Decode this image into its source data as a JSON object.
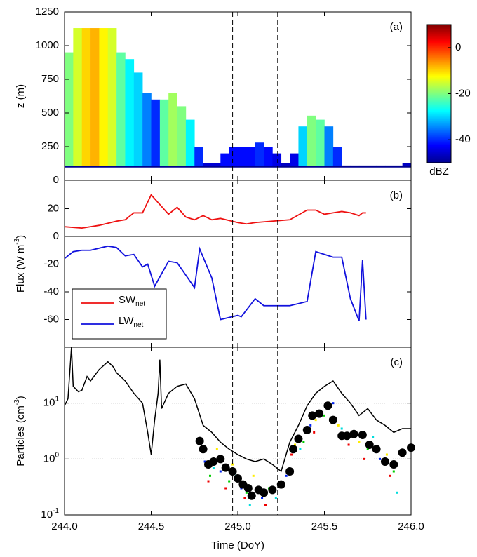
{
  "chart_data": [
    {
      "type": "heatmap",
      "panel_label": "(a)",
      "ylabel": "z (m)",
      "xlim": [
        244,
        246
      ],
      "xticks": [
        244,
        244.5,
        245,
        245.5,
        246
      ],
      "ylim": [
        0,
        1250
      ],
      "yticks": [
        0,
        250,
        500,
        750,
        1000,
        1250
      ],
      "vlines": [
        244.97,
        245.23
      ],
      "colormap": "jet",
      "base": 100,
      "x": [
        244,
        244.05,
        244.1,
        244.15,
        244.2,
        244.25,
        244.3,
        244.35,
        244.4,
        244.45,
        244.5,
        244.55,
        244.6,
        244.65,
        244.7,
        244.75,
        244.8,
        244.85,
        244.9,
        244.95,
        245,
        245.05,
        245.1,
        245.15,
        245.2,
        245.25,
        245.3,
        245.35,
        245.4,
        245.45,
        245.5,
        245.55,
        245.6,
        245.65,
        245.7,
        245.75,
        245.8,
        245.85,
        245.9,
        245.95
      ],
      "top": [
        950,
        1130,
        1130,
        1130,
        1130,
        1130,
        950,
        900,
        800,
        650,
        600,
        600,
        650,
        550,
        450,
        250,
        130,
        130,
        200,
        250,
        250,
        250,
        280,
        250,
        200,
        130,
        200,
        400,
        480,
        450,
        400,
        250,
        110,
        110,
        110,
        110,
        110,
        110,
        110,
        130
      ],
      "dbz": [
        -20,
        -15,
        -10,
        -8,
        -12,
        -15,
        -22,
        -28,
        -30,
        -35,
        -40,
        -22,
        -18,
        -20,
        -28,
        -40,
        -45,
        -45,
        -42,
        -42,
        -42,
        -42,
        -40,
        -42,
        -44,
        -46,
        -44,
        -30,
        -20,
        -22,
        -35,
        -40,
        -48,
        -48,
        -48,
        -48,
        -48,
        -48,
        -48,
        -46
      ],
      "clim": [
        -50,
        10
      ],
      "cticks": [
        -40,
        -20,
        0
      ],
      "clabel": "dBZ"
    },
    {
      "type": "line",
      "panel_label": "(b)",
      "legend": "lower left",
      "ylabel": {
        "text": "Flux (W m",
        "sup": "-3",
        "tail": ")"
      },
      "xlim": [
        244,
        246
      ],
      "xticks": [
        244,
        244.5,
        245,
        245.5,
        246
      ],
      "ylim": [
        -80,
        40.5
      ],
      "yticks": [
        -60,
        -40,
        -20,
        0,
        20
      ],
      "zero_line": 0,
      "series": [
        {
          "name": "SW",
          "sub": "net",
          "color": "#ee1111",
          "x": [
            244,
            244.1,
            244.2,
            244.3,
            244.35,
            244.4,
            244.45,
            244.5,
            244.55,
            244.6,
            244.65,
            244.7,
            244.75,
            244.8,
            244.85,
            244.9,
            245,
            245.05,
            245.1,
            245.2,
            245.3,
            245.4,
            245.45,
            245.5,
            245.55,
            245.6,
            245.65,
            245.7,
            245.72,
            245.74
          ],
          "values": [
            7,
            6,
            8,
            11,
            12,
            17,
            17,
            30,
            23,
            16,
            21,
            14,
            12,
            15,
            12,
            13,
            10,
            9,
            10,
            11,
            12,
            19,
            19,
            16,
            17,
            18,
            17,
            15,
            17,
            17
          ]
        },
        {
          "name": "LW",
          "sub": "net",
          "color": "#1111dd",
          "x": [
            244,
            244.05,
            244.1,
            244.15,
            244.25,
            244.3,
            244.35,
            244.4,
            244.45,
            244.48,
            244.52,
            244.6,
            244.65,
            244.7,
            244.75,
            244.78,
            244.85,
            244.9,
            245,
            245.02,
            245.1,
            245.15,
            245.2,
            245.3,
            245.4,
            245.45,
            245.55,
            245.6,
            245.65,
            245.7,
            245.72,
            245.74
          ],
          "values": [
            -16,
            -11,
            -10,
            -10,
            -7,
            -8,
            -14,
            -13,
            -22,
            -20,
            -36,
            -18,
            -19,
            -28,
            -37,
            -9,
            -30,
            -60,
            -57,
            -58,
            -45,
            -50,
            -50,
            -50,
            -47,
            -11,
            -15,
            -15,
            -45,
            -61,
            -17,
            -60
          ]
        }
      ]
    },
    {
      "type": "log-scatter",
      "panel_label": "(c)",
      "ylabel": {
        "text": "Particles (cm",
        "sup": "-3",
        "tail": ")"
      },
      "xlabel": "Time (DoY)",
      "xlim": [
        244,
        246
      ],
      "xticks": [
        {
          "value": 244,
          "label": "244.0"
        },
        {
          "value": 244.5,
          "label": "244.5"
        },
        {
          "value": 245,
          "label": "245.0"
        },
        {
          "value": 245.5,
          "label": "245.5"
        },
        {
          "value": 246,
          "label": "246.0"
        }
      ],
      "ylim": [
        0.1,
        100
      ],
      "log": true,
      "yticks": [
        {
          "value": 0.1,
          "label": "10",
          "sup": "-1"
        },
        {
          "value": 1,
          "label": "10",
          "sup": "0"
        },
        {
          "value": 10,
          "label": "10",
          "sup": "1"
        }
      ],
      "grid_y": [
        1,
        10
      ],
      "line": {
        "color": "#000000",
        "x": [
          244,
          244.02,
          244.04,
          244.05,
          244.08,
          244.1,
          244.13,
          244.15,
          244.2,
          244.25,
          244.28,
          244.3,
          244.35,
          244.4,
          244.45,
          244.48,
          244.5,
          244.52,
          244.54,
          244.55,
          244.56,
          244.6,
          244.65,
          244.7,
          244.75,
          244.8,
          244.85,
          244.9,
          244.95,
          245,
          245.05,
          245.1,
          245.15,
          245.2,
          245.25,
          245.3,
          245.35,
          245.4,
          245.45,
          245.5,
          245.55,
          245.6,
          245.65,
          245.7,
          245.75,
          245.8,
          245.85,
          245.9,
          245.95,
          246
        ],
        "values": [
          9,
          12,
          100,
          20,
          16,
          17,
          30,
          25,
          40,
          55,
          45,
          35,
          25,
          15,
          10,
          3,
          1.2,
          5,
          15,
          60,
          8,
          15,
          20,
          22,
          12,
          4,
          3,
          2,
          1.5,
          1.2,
          1,
          0.9,
          1,
          0.8,
          0.6,
          2,
          4,
          9,
          15,
          20,
          25,
          15,
          10,
          6,
          8,
          5,
          4,
          3,
          3.5,
          3.5
        ]
      },
      "series": [
        {
          "color": "#ffee00",
          "x": [
            244.79,
            244.88,
            244.97,
            245.09,
            245.33,
            245.45,
            245.58,
            245.7,
            245.86
          ],
          "values": [
            1.6,
            1.5,
            0.8,
            0.5,
            1.8,
            5,
            4,
            2,
            1.2
          ]
        },
        {
          "color": "#00cc00",
          "x": [
            244.84,
            244.95,
            245.05,
            245.18,
            245.38,
            245.5,
            245.62,
            245.75,
            245.9
          ],
          "values": [
            0.5,
            0.4,
            0.25,
            0.3,
            2,
            6,
            2.5,
            1.5,
            0.6
          ]
        },
        {
          "color": "#0022ee",
          "x": [
            244.81,
            244.9,
            245.02,
            245.14,
            245.28,
            245.42,
            245.55,
            245.66,
            245.82
          ],
          "values": [
            0.9,
            0.6,
            0.3,
            0.2,
            0.5,
            4,
            10,
            3,
            1
          ]
        },
        {
          "color": "#00dddd",
          "x": [
            244.86,
            244.99,
            245.07,
            245.22,
            245.36,
            245.47,
            245.6,
            245.78,
            245.92
          ],
          "values": [
            0.7,
            0.5,
            0.15,
            0.2,
            1.5,
            7,
            3.5,
            2.5,
            0.25
          ]
        },
        {
          "color": "#ee0000",
          "x": [
            244.83,
            244.93,
            245.04,
            245.16,
            245.31,
            245.44,
            245.64,
            245.73,
            245.88
          ],
          "values": [
            0.4,
            0.3,
            0.2,
            0.15,
            1.2,
            3,
            1.8,
            1,
            0.5
          ]
        },
        {
          "color": "#000000",
          "size": 6,
          "x": [
            244.78,
            244.8,
            244.83,
            244.86,
            244.9,
            244.93,
            244.97,
            245,
            245.03,
            245.06,
            245.08,
            245.12,
            245.15,
            245.2,
            245.25,
            245.3,
            245.32,
            245.35,
            245.4,
            245.43,
            245.47,
            245.52,
            245.55,
            245.6,
            245.63,
            245.67,
            245.72,
            245.76,
            245.8,
            245.85,
            245.9,
            245.95,
            246
          ],
          "values": [
            2.1,
            1.5,
            0.8,
            0.9,
            1,
            0.7,
            0.6,
            0.45,
            0.35,
            0.3,
            0.22,
            0.28,
            0.25,
            0.28,
            0.35,
            0.6,
            1.5,
            2.3,
            3.3,
            6,
            6.5,
            9,
            5,
            2.6,
            2.6,
            2.8,
            2.7,
            1.8,
            1.5,
            0.9,
            0.8,
            1.3,
            1.6
          ]
        }
      ]
    }
  ]
}
